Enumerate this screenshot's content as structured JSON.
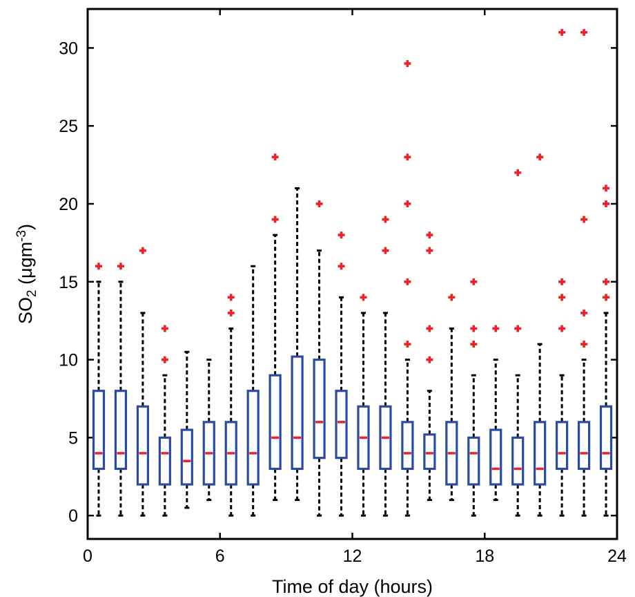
{
  "chart_data": {
    "type": "box",
    "xlabel": "Time of day (hours)",
    "ylabel": {
      "main": "SO",
      "sub": "2",
      "unit_open": " (μgm",
      "unit_sup": "-3",
      "unit_close": ")"
    },
    "xlim": [
      0,
      24
    ],
    "ylim": [
      -1.5,
      32.5
    ],
    "x_ticks": [
      0,
      6,
      12,
      18,
      24
    ],
    "y_ticks": [
      0,
      5,
      10,
      15,
      20,
      25,
      30
    ],
    "box_color": "#2a4aa8",
    "median_color": "#e8232a",
    "whisker_color": "#000000",
    "outlier_color": "#e8232a",
    "boxes": [
      {
        "x": 0.5,
        "q1": 3,
        "median": 4,
        "q3": 8,
        "whisker_low": 0,
        "whisker_high": 15,
        "outliers": [
          16
        ]
      },
      {
        "x": 1.5,
        "q1": 3,
        "median": 4,
        "q3": 8,
        "whisker_low": 0,
        "whisker_high": 15,
        "outliers": [
          16
        ]
      },
      {
        "x": 2.5,
        "q1": 2,
        "median": 4,
        "q3": 7,
        "whisker_low": 0,
        "whisker_high": 13,
        "outliers": [
          17
        ]
      },
      {
        "x": 3.5,
        "q1": 2,
        "median": 4,
        "q3": 5,
        "whisker_low": 0,
        "whisker_high": 9,
        "outliers": [
          10,
          12
        ]
      },
      {
        "x": 4.5,
        "q1": 2,
        "median": 3.5,
        "q3": 5.5,
        "whisker_low": 0.5,
        "whisker_high": 10.5,
        "outliers": []
      },
      {
        "x": 5.5,
        "q1": 2,
        "median": 4,
        "q3": 6,
        "whisker_low": 1,
        "whisker_high": 10,
        "outliers": []
      },
      {
        "x": 6.5,
        "q1": 2,
        "median": 4,
        "q3": 6,
        "whisker_low": 0,
        "whisker_high": 12,
        "outliers": [
          13,
          14
        ]
      },
      {
        "x": 7.5,
        "q1": 2,
        "median": 4,
        "q3": 8,
        "whisker_low": 0,
        "whisker_high": 16,
        "outliers": []
      },
      {
        "x": 8.5,
        "q1": 3,
        "median": 5,
        "q3": 9,
        "whisker_low": 1,
        "whisker_high": 18,
        "outliers": [
          19,
          23
        ]
      },
      {
        "x": 9.5,
        "q1": 3,
        "median": 5,
        "q3": 10.2,
        "whisker_low": 1,
        "whisker_high": 21,
        "outliers": []
      },
      {
        "x": 10.5,
        "q1": 3.7,
        "median": 6,
        "q3": 10,
        "whisker_low": 0,
        "whisker_high": 17,
        "outliers": [
          20
        ]
      },
      {
        "x": 11.5,
        "q1": 3.7,
        "median": 6,
        "q3": 8,
        "whisker_low": 0,
        "whisker_high": 14,
        "outliers": [
          16,
          18
        ]
      },
      {
        "x": 12.5,
        "q1": 3,
        "median": 5,
        "q3": 7,
        "whisker_low": 0,
        "whisker_high": 13,
        "outliers": [
          14
        ]
      },
      {
        "x": 13.5,
        "q1": 3,
        "median": 5,
        "q3": 7,
        "whisker_low": 0,
        "whisker_high": 13,
        "outliers": [
          17,
          19
        ]
      },
      {
        "x": 14.5,
        "q1": 3,
        "median": 4,
        "q3": 6,
        "whisker_low": 0,
        "whisker_high": 10,
        "outliers": [
          11,
          15,
          20,
          23,
          29
        ]
      },
      {
        "x": 15.5,
        "q1": 3,
        "median": 4,
        "q3": 5.2,
        "whisker_low": 1,
        "whisker_high": 8,
        "outliers": [
          10,
          12,
          17,
          18
        ]
      },
      {
        "x": 16.5,
        "q1": 2,
        "median": 4,
        "q3": 6,
        "whisker_low": 1,
        "whisker_high": 12,
        "outliers": [
          14
        ]
      },
      {
        "x": 17.5,
        "q1": 2,
        "median": 4,
        "q3": 5,
        "whisker_low": 0,
        "whisker_high": 9,
        "outliers": [
          11,
          12,
          15
        ]
      },
      {
        "x": 18.5,
        "q1": 2,
        "median": 3,
        "q3": 5.5,
        "whisker_low": 1,
        "whisker_high": 10,
        "outliers": [
          12
        ]
      },
      {
        "x": 19.5,
        "q1": 2,
        "median": 3,
        "q3": 5,
        "whisker_low": 0,
        "whisker_high": 9,
        "outliers": [
          12,
          22
        ]
      },
      {
        "x": 20.5,
        "q1": 2,
        "median": 3,
        "q3": 6,
        "whisker_low": 0,
        "whisker_high": 11,
        "outliers": [
          23
        ]
      },
      {
        "x": 21.5,
        "q1": 3,
        "median": 4,
        "q3": 6,
        "whisker_low": 0,
        "whisker_high": 9,
        "outliers": [
          12,
          14,
          15,
          31
        ]
      },
      {
        "x": 22.5,
        "q1": 3,
        "median": 4,
        "q3": 6,
        "whisker_low": 0,
        "whisker_high": 10,
        "outliers": [
          11,
          13,
          19,
          31
        ]
      },
      {
        "x": 23.5,
        "q1": 3,
        "median": 4,
        "q3": 7,
        "whisker_low": 0,
        "whisker_high": 13,
        "outliers": [
          14,
          15,
          20,
          21
        ]
      }
    ]
  }
}
